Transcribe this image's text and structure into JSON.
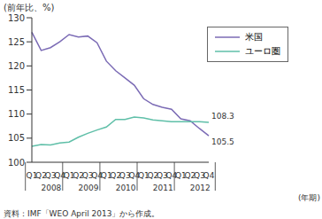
{
  "chart_data": {
    "type": "line",
    "y_label": "(前年比、%)",
    "x_label": "(年期)",
    "source": "資料：IMF「WEO April 2013」から作成。",
    "categories": [
      "Q1",
      "Q2",
      "Q3",
      "Q4",
      "Q1",
      "Q2",
      "Q3",
      "Q4",
      "Q1",
      "Q2",
      "Q3",
      "Q4",
      "Q1",
      "Q2",
      "Q3",
      "Q4",
      "Q1",
      "Q2",
      "Q3",
      "Q4"
    ],
    "year_labels": [
      "2008",
      "2009",
      "2010",
      "2011",
      "2012"
    ],
    "series": [
      {
        "name": "米国",
        "color": "#7b6bb5",
        "values": [
          127,
          123.2,
          123.8,
          125,
          126.5,
          126,
          126.2,
          124.8,
          121,
          119,
          117.5,
          116,
          113.2,
          112,
          111.4,
          111,
          109,
          108.6,
          107,
          105.5
        ],
        "value_labels": [
          null,
          null,
          null,
          null,
          null,
          null,
          null,
          null,
          null,
          null,
          null,
          null,
          null,
          null,
          null,
          null,
          null,
          null,
          null,
          "105.5"
        ]
      },
      {
        "name": "ユーロ圏",
        "color": "#5fbfa8",
        "values": [
          103.3,
          103.7,
          103.6,
          104,
          104.2,
          105.2,
          106,
          106.7,
          107.3,
          108.9,
          108.9,
          109.4,
          109.2,
          108.8,
          108.6,
          108.4,
          108.4,
          108.4,
          108.4,
          108.3
        ],
        "value_labels": [
          null,
          null,
          null,
          null,
          null,
          null,
          null,
          null,
          null,
          null,
          null,
          null,
          null,
          null,
          null,
          null,
          null,
          null,
          null,
          "108.3"
        ]
      }
    ],
    "ylim": [
      100,
      130
    ],
    "yticks": [
      100,
      105,
      110,
      115,
      120,
      125,
      130
    ],
    "legend": "upper right",
    "data_labels": true,
    "grid": false
  }
}
